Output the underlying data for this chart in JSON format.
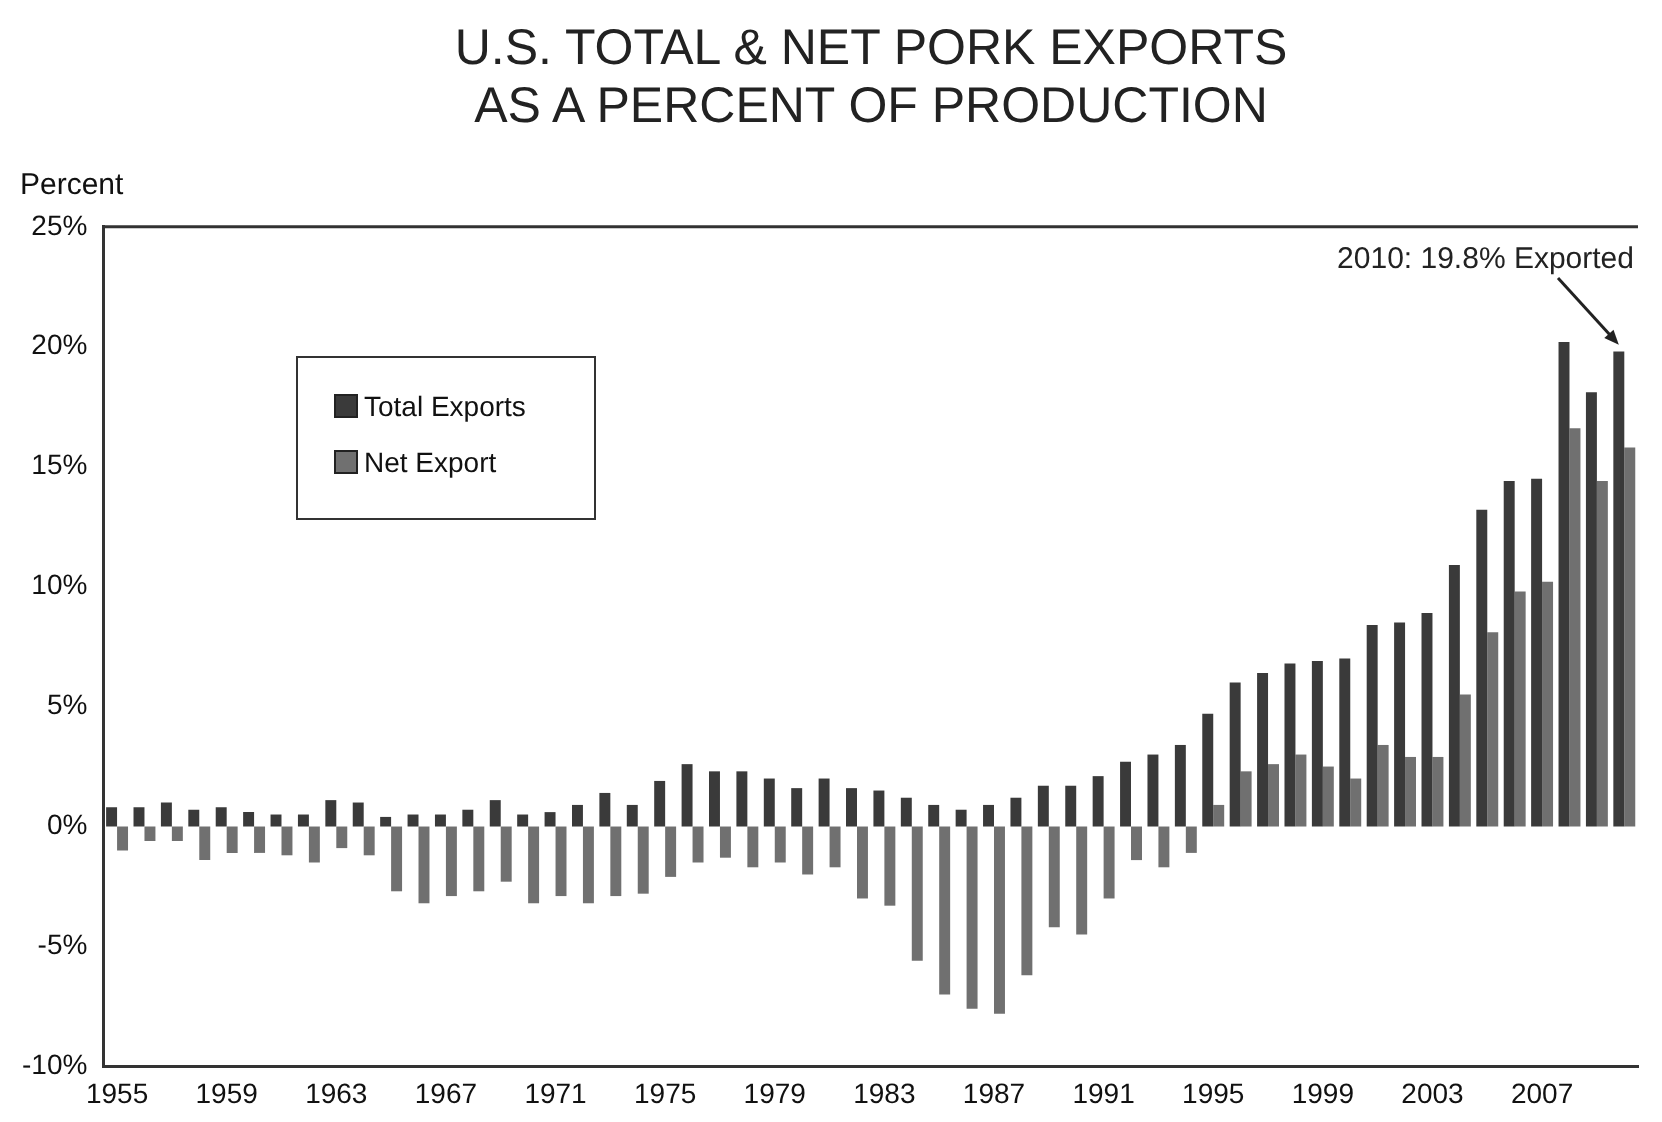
{
  "chart_data": {
    "type": "bar",
    "title": "U.S. TOTAL & NET PORK EXPORTS\nAS A PERCENT OF PRODUCTION",
    "ylabel": "Percent",
    "categories": [
      "1955",
      null,
      null,
      null,
      "1959",
      null,
      null,
      null,
      "1963",
      null,
      null,
      null,
      "1967",
      null,
      null,
      null,
      "1971",
      null,
      null,
      null,
      "1975",
      null,
      null,
      null,
      "1979",
      null,
      null,
      null,
      "1983",
      null,
      null,
      null,
      "1987",
      null,
      null,
      null,
      "1991",
      null,
      null,
      null,
      "1995",
      null,
      null,
      null,
      "1999",
      null,
      null,
      null,
      "2003",
      null,
      null,
      null,
      "2007",
      null,
      null,
      null
    ],
    "series": [
      {
        "name": "Total Exports",
        "color": "#3a3a3a",
        "values": [
          0.8,
          0.8,
          1.0,
          0.7,
          0.8,
          0.6,
          0.5,
          0.5,
          1.1,
          1.0,
          0.4,
          0.5,
          0.5,
          0.7,
          1.1,
          0.5,
          0.6,
          0.9,
          1.4,
          0.9,
          1.9,
          2.6,
          2.3,
          2.3,
          2.0,
          1.6,
          2.0,
          1.6,
          1.5,
          1.2,
          0.9,
          0.7,
          0.9,
          1.2,
          1.7,
          1.7,
          2.1,
          2.7,
          3.0,
          3.4,
          4.7,
          6.0,
          6.4,
          6.8,
          6.9,
          7.0,
          8.4,
          8.5,
          8.9,
          10.9,
          13.2,
          14.4,
          14.5,
          20.2,
          18.1,
          19.8
        ]
      },
      {
        "name": "Net Export",
        "color": "#707070",
        "values": [
          -1.0,
          -0.6,
          -0.6,
          -1.4,
          -1.1,
          -1.1,
          -1.2,
          -1.5,
          -0.9,
          -1.2,
          -2.7,
          -3.2,
          -2.9,
          -2.7,
          -2.3,
          -3.2,
          -2.9,
          -3.2,
          -2.9,
          -2.8,
          -2.1,
          -1.5,
          -1.3,
          -1.7,
          -1.5,
          -2.0,
          -1.7,
          -3.0,
          -3.3,
          -5.6,
          -7.0,
          -7.6,
          -7.8,
          -6.2,
          -4.2,
          -4.5,
          -3.0,
          -1.4,
          -1.7,
          -1.1,
          0.9,
          2.3,
          2.6,
          3.0,
          2.5,
          2.0,
          3.4,
          2.9,
          2.9,
          5.5,
          8.1,
          9.8,
          10.2,
          16.6,
          14.4,
          15.8
        ]
      }
    ],
    "ylim": [
      -10,
      25
    ],
    "yticks": [
      {
        "value": -10,
        "label": "-10%"
      },
      {
        "value": -5,
        "label": "-5%"
      },
      {
        "value": 0,
        "label": "0%"
      },
      {
        "value": 5,
        "label": "5%"
      },
      {
        "value": 10,
        "label": "10%"
      },
      {
        "value": 15,
        "label": "15%"
      },
      {
        "value": 20,
        "label": "20%"
      },
      {
        "value": 25,
        "label": "25%"
      }
    ],
    "grid": false,
    "legend": "top left",
    "annotations": [
      "2010: 19.8% Exported"
    ]
  }
}
